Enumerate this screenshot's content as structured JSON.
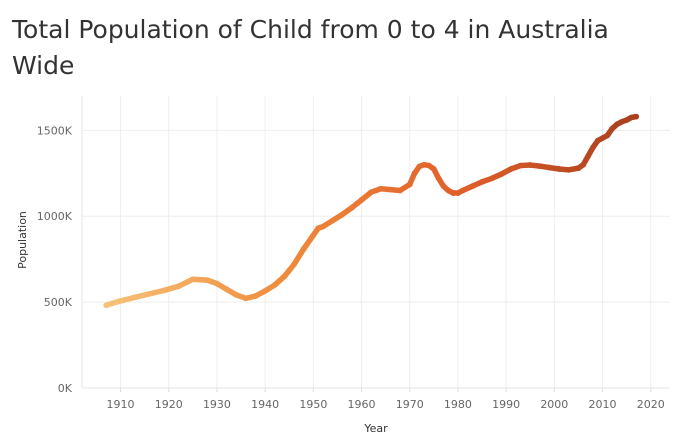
{
  "chart_data": {
    "type": "line",
    "title": "Total Population of Child from 0 to 4 in Australia Wide",
    "xlabel": "Year",
    "ylabel": "Population",
    "xlim": [
      1902,
      2024
    ],
    "ylim": [
      0,
      1700000
    ],
    "x_ticks": [
      1910,
      1920,
      1930,
      1940,
      1950,
      1960,
      1970,
      1980,
      1990,
      2000,
      2010,
      2020
    ],
    "x_tick_labels": [
      "1910",
      "1920",
      "1930",
      "1940",
      "1950",
      "1960",
      "1970",
      "1980",
      "1990",
      "2000",
      "2010",
      "2020"
    ],
    "y_ticks": [
      0,
      500000,
      1000000,
      1500000
    ],
    "y_tick_labels": [
      "0K",
      "500K",
      "1000K",
      "1500K"
    ],
    "grid": true,
    "color_scale": [
      "#f6c27a",
      "#f08b3c",
      "#e0602a",
      "#a8401f"
    ],
    "series": [
      {
        "x": [
          1907,
          1910,
          1913,
          1916,
          1919,
          1922,
          1925,
          1928,
          1930,
          1932,
          1934,
          1936,
          1938,
          1940,
          1942,
          1944,
          1946,
          1948,
          1950,
          1951,
          1952,
          1954,
          1956,
          1958,
          1960,
          1962,
          1964,
          1966,
          1968,
          1970,
          1971,
          1972,
          1973,
          1974,
          1975,
          1976,
          1977,
          1978,
          1979,
          1980,
          1981,
          1983,
          1985,
          1987,
          1989,
          1991,
          1993,
          1995,
          1997,
          1999,
          2001,
          2003,
          2005,
          2006,
          2007,
          2008,
          2009,
          2010,
          2011,
          2012,
          2013,
          2014,
          2015,
          2016,
          2017
        ],
        "values": [
          482000,
          507000,
          528000,
          548000,
          568000,
          592000,
          633000,
          628000,
          608000,
          575000,
          542000,
          522000,
          535000,
          565000,
          600000,
          650000,
          720000,
          810000,
          890000,
          930000,
          940000,
          975000,
          1010000,
          1050000,
          1095000,
          1140000,
          1160000,
          1155000,
          1150000,
          1185000,
          1250000,
          1290000,
          1300000,
          1295000,
          1275000,
          1220000,
          1175000,
          1150000,
          1135000,
          1135000,
          1150000,
          1175000,
          1200000,
          1220000,
          1245000,
          1275000,
          1295000,
          1298000,
          1292000,
          1283000,
          1275000,
          1270000,
          1280000,
          1300000,
          1350000,
          1400000,
          1440000,
          1455000,
          1470000,
          1510000,
          1535000,
          1550000,
          1560000,
          1575000,
          1580000
        ]
      }
    ]
  }
}
